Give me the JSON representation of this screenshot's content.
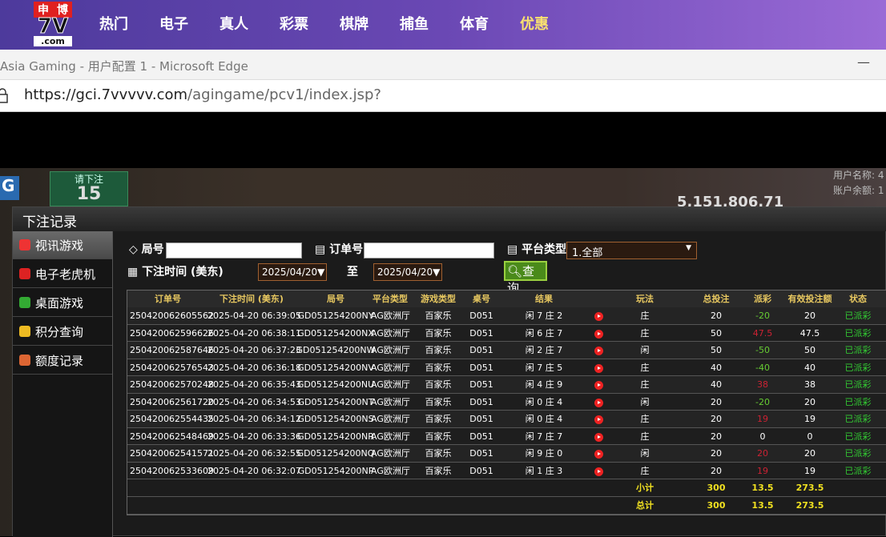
{
  "nav": {
    "logo_top": [
      "申",
      "博"
    ],
    "logo_main": "7V",
    "logo_sub": ".com",
    "items": [
      "热门",
      "电子",
      "真人",
      "彩票",
      "棋牌",
      "捕鱼",
      "体育",
      "优惠"
    ]
  },
  "browser": {
    "title": "Asia Gaming - 用户配置 1 - Microsoft Edge",
    "minimize": "—",
    "url_host": "https://gci.7vvvvv.com",
    "url_path": "/agingame/pcv1/index.jsp?"
  },
  "game": {
    "bet_prompt": "请下注",
    "countdown": "15",
    "pool": "5,151,806.71",
    "user_label": "用户名称: 4",
    "balance_label": "账户余额: 1"
  },
  "panel": {
    "title": "下注记录",
    "menu": [
      "视讯游戏",
      "电子老虎机",
      "桌面游戏",
      "积分查询",
      "额度记录"
    ],
    "filters": {
      "round_label": "局号",
      "order_label": "订单号",
      "platform_label": "平台类型",
      "platform_value": "1.全部",
      "time_label": "下注时间 (美东)",
      "date_from": "2025/04/20▼",
      "to_label": "至",
      "date_to": "2025/04/20▼",
      "query": "查询"
    },
    "table": {
      "headers": [
        "订单号",
        "下注时间 (美东)",
        "局号",
        "平台类型",
        "游戏类型",
        "桌号",
        "结果",
        "玩法",
        "总投注",
        "派彩",
        "有效投注额",
        "状态"
      ],
      "rows": [
        [
          "250420062605562",
          "2025-04-20 06:39:05",
          "GD051254200NY",
          "AG欧洲厅",
          "百家乐",
          "D051",
          "闲 7 庄 2",
          "庄",
          "20",
          "-20",
          "20",
          "已派彩"
        ],
        [
          "250420062596626",
          "2025-04-20 06:38:11",
          "GD051254200NX",
          "AG欧洲厅",
          "百家乐",
          "D051",
          "闲 6 庄 7",
          "庄",
          "50",
          "47.5",
          "47.5",
          "已派彩"
        ],
        [
          "250420062587646",
          "2025-04-20 06:37:23",
          "GD051254200NW",
          "AG欧洲厅",
          "百家乐",
          "D051",
          "闲 2 庄 7",
          "闲",
          "50",
          "-50",
          "50",
          "已派彩"
        ],
        [
          "250420062576543",
          "2025-04-20 06:36:18",
          "GD051254200NV",
          "AG欧洲厅",
          "百家乐",
          "D051",
          "闲 7 庄 5",
          "庄",
          "40",
          "-40",
          "40",
          "已派彩"
        ],
        [
          "250420062570248",
          "2025-04-20 06:35:43",
          "GD051254200NU",
          "AG欧洲厅",
          "百家乐",
          "D051",
          "闲 4 庄 9",
          "庄",
          "40",
          "38",
          "38",
          "已派彩"
        ],
        [
          "250420062561720",
          "2025-04-20 06:34:53",
          "GD051254200NT",
          "AG欧洲厅",
          "百家乐",
          "D051",
          "闲 0 庄 4",
          "闲",
          "20",
          "-20",
          "20",
          "已派彩"
        ],
        [
          "250420062554435",
          "2025-04-20 06:34:12",
          "GD051254200NS",
          "AG欧洲厅",
          "百家乐",
          "D051",
          "闲 0 庄 4",
          "庄",
          "20",
          "19",
          "19",
          "已派彩"
        ],
        [
          "250420062548469",
          "2025-04-20 06:33:36",
          "GD051254200NR",
          "AG欧洲厅",
          "百家乐",
          "D051",
          "闲 7 庄 7",
          "庄",
          "20",
          "0",
          "0",
          "已派彩"
        ],
        [
          "250420062541571",
          "2025-04-20 06:32:55",
          "GD051254200NQ",
          "AG欧洲厅",
          "百家乐",
          "D051",
          "闲 9 庄 0",
          "闲",
          "20",
          "20",
          "20",
          "已派彩"
        ],
        [
          "250420062533609",
          "2025-04-20 06:32:07",
          "GD051254200NP",
          "AG欧洲厅",
          "百家乐",
          "D051",
          "闲 1 庄 3",
          "庄",
          "20",
          "19",
          "19",
          "已派彩"
        ]
      ],
      "totals": [
        [
          "小计",
          "300",
          "13.5",
          "273.5"
        ],
        [
          "总计",
          "300",
          "13.5",
          "273.5"
        ]
      ]
    }
  }
}
